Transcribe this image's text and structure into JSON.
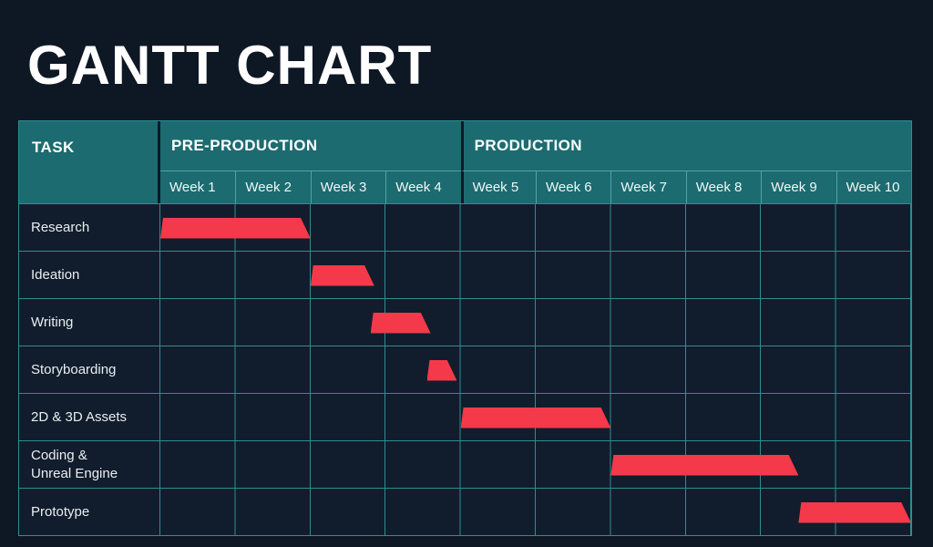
{
  "title": "GANTT CHART",
  "header": {
    "task_column": "TASK",
    "phases": [
      {
        "label": "PRE-PRODUCTION"
      },
      {
        "label": "PRODUCTION"
      }
    ],
    "weeks": [
      "Week 1",
      "Week 2",
      "Week 3",
      "Week 4",
      "Week 5",
      "Week 6",
      "Week 7",
      "Week 8",
      "Week 9",
      "Week 10"
    ]
  },
  "chart_data": {
    "type": "bar",
    "subtype": "gantt",
    "title": "GANTT CHART",
    "unit": "weeks (0 = start of Week 1)",
    "x_ticks": [
      "Week 1",
      "Week 2",
      "Week 3",
      "Week 4",
      "Week 5",
      "Week 6",
      "Week 7",
      "Week 8",
      "Week 9",
      "Week 10"
    ],
    "column_groups": [
      {
        "label": "PRE-PRODUCTION",
        "from_week": 1,
        "to_week": 4
      },
      {
        "label": "PRODUCTION",
        "from_week": 5,
        "to_week": 10
      }
    ],
    "tasks": [
      {
        "label": "Research",
        "start": 0,
        "end": 2
      },
      {
        "label": "Ideation",
        "start": 2,
        "end": 2.85
      },
      {
        "label": "Writing",
        "start": 2.8,
        "end": 3.6
      },
      {
        "label": "Storyboarding",
        "start": 3.55,
        "end": 3.95
      },
      {
        "label": "2D & 3D Assets",
        "start": 4,
        "end": 6
      },
      {
        "label": "Coding &\nUnreal Engine",
        "start": 6,
        "end": 8.5
      },
      {
        "label": "Prototype",
        "start": 8.5,
        "end": 10
      }
    ]
  },
  "colors": {
    "background": "#0e1825",
    "table_body_background": "#111d2c",
    "header_fill": "#1c6b70",
    "header_divider_dark": "#0e1825",
    "header_divider_light": "#51a3a9",
    "grid_line": "#2e8d94",
    "bar": "#f4394b",
    "title_text": "#ffffff",
    "header_text": "#ffffff",
    "task_text": "#e9eef2"
  }
}
